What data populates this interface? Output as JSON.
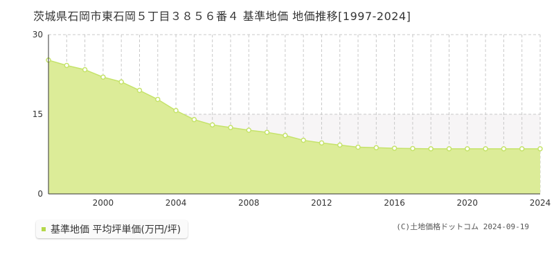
{
  "title": "茨城県石岡市東石岡５丁目３８５６番４ 基準地価 地価推移[1997-2024]",
  "legend_label": "基準地価 平均坪単価(万円/坪)",
  "copyright": "(C)土地価格ドットコム 2024-09-19",
  "colors": {
    "fill": "#dcec98",
    "line": "#c5e36a",
    "point_fill": "#ffffff",
    "point_stroke": "#c5e36a",
    "grid": "#c8c8c8",
    "band": "#f7f5f6",
    "legend_swatch": "#b4d84a"
  },
  "chart_data": {
    "type": "area",
    "x": [
      1997,
      1998,
      1999,
      2000,
      2001,
      2002,
      2003,
      2004,
      2005,
      2006,
      2007,
      2008,
      2009,
      2010,
      2011,
      2012,
      2013,
      2014,
      2015,
      2016,
      2017,
      2018,
      2019,
      2020,
      2021,
      2022,
      2023,
      2024
    ],
    "series": [
      {
        "values": [
          25.2,
          24.2,
          23.4,
          22.0,
          21.1,
          19.5,
          17.8,
          15.7,
          14.0,
          13.0,
          12.5,
          12.0,
          11.6,
          11.0,
          10.1,
          9.6,
          9.2,
          8.8,
          8.7,
          8.6,
          8.55,
          8.5,
          8.5,
          8.5,
          8.5,
          8.5,
          8.5,
          8.5
        ]
      }
    ],
    "xlim": [
      1997,
      2024
    ],
    "ylim": [
      0,
      30
    ],
    "yticks": [
      0,
      15,
      30
    ],
    "xticks": [
      2000,
      2004,
      2008,
      2012,
      2016,
      2020,
      2024
    ],
    "grid": true,
    "legend_position": "bottom-left"
  }
}
